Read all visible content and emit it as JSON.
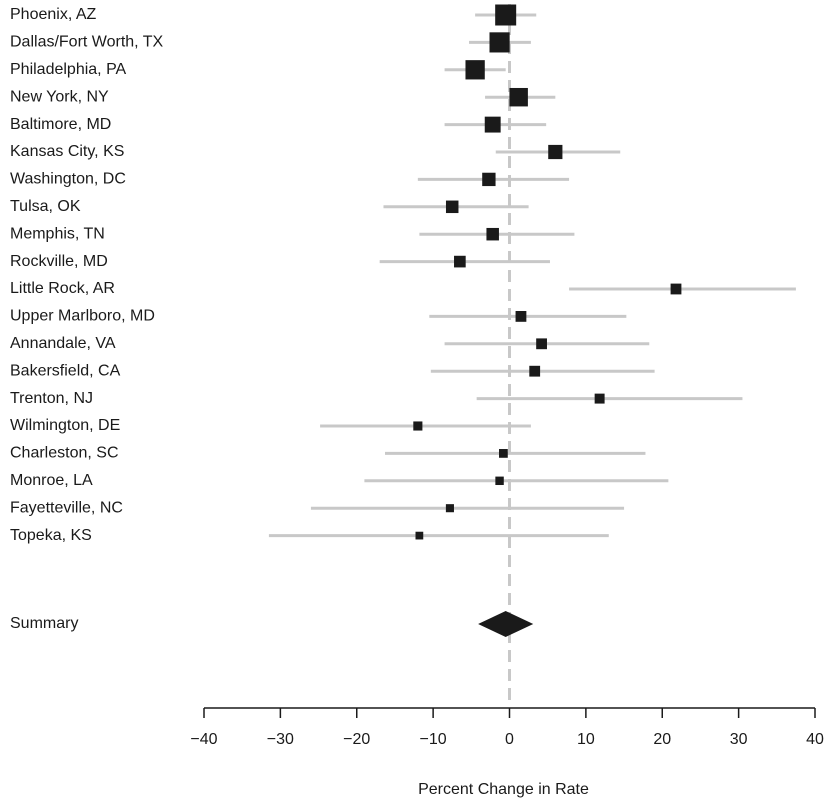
{
  "chart_data": {
    "type": "forest",
    "xlabel": "Percent Change in Rate",
    "xlim": [
      -40,
      40
    ],
    "ticks": [
      -40,
      -30,
      -20,
      -10,
      0,
      10,
      20,
      30,
      40
    ],
    "tick_labels": [
      "−40",
      "−30",
      "−20",
      "−10",
      "0",
      "10",
      "20",
      "30",
      "40"
    ],
    "reference_line": 0,
    "colors": {
      "point": "#1a1a1a",
      "ci": "#c8c8c8",
      "reference": "#c8c8c8",
      "axis": "#1a1a1a"
    },
    "rows": [
      {
        "label": "Phoenix, AZ",
        "estimate": -0.5,
        "lower": -4.5,
        "upper": 3.5,
        "weight": 1.0
      },
      {
        "label": "Dallas/Fort Worth, TX",
        "estimate": -1.3,
        "lower": -5.3,
        "upper": 2.8,
        "weight": 0.95
      },
      {
        "label": "Philadelphia, PA",
        "estimate": -4.5,
        "lower": -8.5,
        "upper": -0.5,
        "weight": 0.9
      },
      {
        "label": "New York, NY",
        "estimate": 1.2,
        "lower": -3.2,
        "upper": 6.0,
        "weight": 0.85
      },
      {
        "label": "Baltimore, MD",
        "estimate": -2.2,
        "lower": -8.5,
        "upper": 4.8,
        "weight": 0.7
      },
      {
        "label": "Kansas City, KS",
        "estimate": 6.0,
        "lower": -1.8,
        "upper": 14.5,
        "weight": 0.6
      },
      {
        "label": "Washington, DC",
        "estimate": -2.7,
        "lower": -12.0,
        "upper": 7.8,
        "weight": 0.55
      },
      {
        "label": "Tulsa, OK",
        "estimate": -7.5,
        "lower": -16.5,
        "upper": 2.5,
        "weight": 0.5
      },
      {
        "label": "Memphis, TN",
        "estimate": -2.2,
        "lower": -11.8,
        "upper": 8.5,
        "weight": 0.5
      },
      {
        "label": "Rockville, MD",
        "estimate": -6.5,
        "lower": -17.0,
        "upper": 5.3,
        "weight": 0.45
      },
      {
        "label": "Little Rock, AR",
        "estimate": 21.8,
        "lower": 7.8,
        "upper": 37.5,
        "weight": 0.4
      },
      {
        "label": "Upper Marlboro, MD",
        "estimate": 1.5,
        "lower": -10.5,
        "upper": 15.3,
        "weight": 0.4
      },
      {
        "label": "Annandale, VA",
        "estimate": 4.2,
        "lower": -8.5,
        "upper": 18.3,
        "weight": 0.4
      },
      {
        "label": "Bakersfield, CA",
        "estimate": 3.3,
        "lower": -10.3,
        "upper": 19.0,
        "weight": 0.4
      },
      {
        "label": "Trenton, NJ",
        "estimate": 11.8,
        "lower": -4.3,
        "upper": 30.5,
        "weight": 0.35
      },
      {
        "label": "Wilmington, DE",
        "estimate": -12.0,
        "lower": -24.8,
        "upper": 2.8,
        "weight": 0.3
      },
      {
        "label": "Charleston, SC",
        "estimate": -0.8,
        "lower": -16.3,
        "upper": 17.8,
        "weight": 0.28
      },
      {
        "label": "Monroe, LA",
        "estimate": -1.3,
        "lower": -19.0,
        "upper": 20.8,
        "weight": 0.26
      },
      {
        "label": "Fayetteville, NC",
        "estimate": -7.8,
        "lower": -26.0,
        "upper": 15.0,
        "weight": 0.24
      },
      {
        "label": "Topeka, KS",
        "estimate": -11.8,
        "lower": -31.5,
        "upper": 13.0,
        "weight": 0.22
      }
    ],
    "summary": {
      "label": "Summary",
      "estimate": -0.5,
      "lower": -2.8,
      "upper": 1.8
    }
  }
}
